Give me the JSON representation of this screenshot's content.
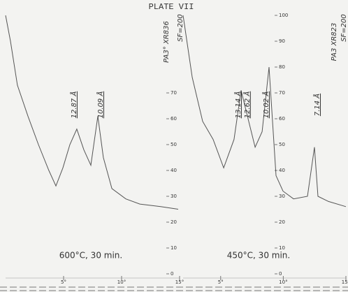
{
  "title": "PLATE VII",
  "chart_data": [
    {
      "type": "line",
      "caption": "600°C, 30 min.",
      "sample_id": "PA3° XR836",
      "scale_factor": "SF=200",
      "color": "#555555",
      "x": [
        0,
        0.42,
        1.02,
        1.93,
        2.83,
        3.73,
        4.34,
        4.94,
        5.54,
        6.14,
        6.75,
        7.35,
        7.95,
        8.43,
        9.16,
        10.36,
        11.57,
        13.37,
        14.88
      ],
      "values": [
        100,
        90,
        73,
        61,
        50,
        40,
        34,
        41,
        50,
        56,
        48,
        42,
        61,
        45,
        33,
        29,
        27,
        26,
        25
      ],
      "xlim": [
        0,
        15
      ],
      "ylim": [
        0,
        100
      ],
      "xticks": [
        {
          "value": 5,
          "label": "5°"
        },
        {
          "value": 10,
          "label": "10°"
        },
        {
          "value": 15,
          "label": "15°"
        }
      ],
      "yticks": [
        0,
        10,
        20,
        30,
        40,
        50,
        60,
        70
      ],
      "peaks": [
        {
          "label": "12.87 Å",
          "x": 6.14
        },
        {
          "label": "10.09 Å",
          "x": 7.95
        }
      ]
    },
    {
      "type": "line",
      "caption": "450°C, 30 min.",
      "sample_id": "PA3 XR823",
      "scale_factor": "SF=200",
      "color": "#555555",
      "x": [
        2,
        2.73,
        3.56,
        4.4,
        5.24,
        6.07,
        6.63,
        7.19,
        7.75,
        8.31,
        8.86,
        9.42,
        9.98,
        10.82,
        11.93,
        12.49,
        12.77,
        13.61,
        15
      ],
      "values": [
        100,
        76,
        59,
        52,
        41,
        52,
        71,
        60,
        49,
        55,
        80,
        38,
        32,
        29,
        30,
        49,
        30,
        28,
        26
      ],
      "xlim": [
        2,
        15
      ],
      "ylim": [
        0,
        100
      ],
      "xticks": [
        {
          "value": 5,
          "label": "5°"
        },
        {
          "value": 10,
          "label": "10°"
        },
        {
          "value": 15,
          "label": "15°"
        }
      ],
      "yticks": [
        0,
        10,
        20,
        30,
        40,
        50,
        60,
        70,
        80,
        90,
        100
      ],
      "peaks": [
        {
          "label": "13.14 Å",
          "x": 6.63
        },
        {
          "label": "12.62 Å",
          "x": 6.9
        },
        {
          "label": "10.02 Å",
          "x": 8.86
        },
        {
          "label": "7.14 Å",
          "x": 12.49
        }
      ]
    }
  ]
}
